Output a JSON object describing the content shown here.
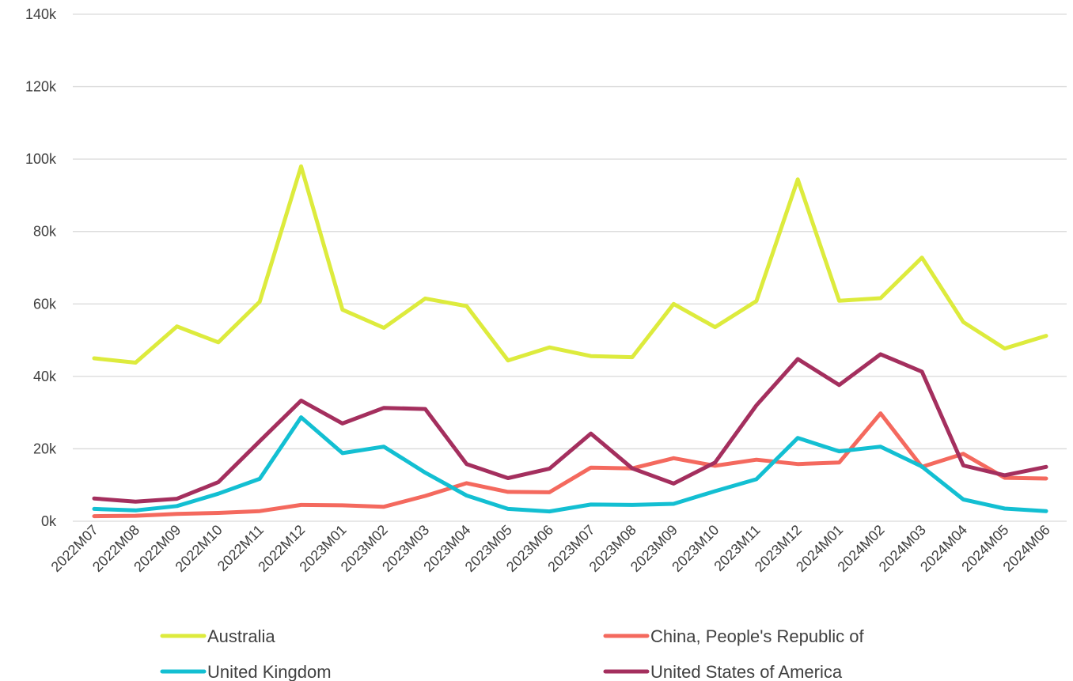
{
  "chart_data": {
    "type": "line",
    "title": "",
    "xlabel": "",
    "ylabel": "",
    "ylim": [
      0,
      140000
    ],
    "y_ticks": [
      {
        "value": 0,
        "label": "0k"
      },
      {
        "value": 20000,
        "label": "20k"
      },
      {
        "value": 40000,
        "label": "40k"
      },
      {
        "value": 60000,
        "label": "60k"
      },
      {
        "value": 80000,
        "label": "80k"
      },
      {
        "value": 100000,
        "label": "100k"
      },
      {
        "value": 120000,
        "label": "120k"
      },
      {
        "value": 140000,
        "label": "140k"
      }
    ],
    "grid": true,
    "legend_position": "bottom",
    "categories": [
      "2022M07",
      "2022M08",
      "2022M09",
      "2022M10",
      "2022M11",
      "2022M12",
      "2023M01",
      "2023M02",
      "2023M03",
      "2023M04",
      "2023M05",
      "2023M06",
      "2023M07",
      "2023M08",
      "2023M09",
      "2023M10",
      "2023M11",
      "2023M12",
      "2024M01",
      "2024M02",
      "2024M03",
      "2024M04",
      "2024M05",
      "2024M06"
    ],
    "series": [
      {
        "name": "Australia",
        "color": "#DDEB3D",
        "values": [
          45000,
          43800,
          53800,
          49400,
          60600,
          98000,
          58400,
          53400,
          61500,
          59400,
          44400,
          48000,
          45600,
          45300,
          60000,
          53600,
          60800,
          94400,
          60900,
          61600,
          72800,
          55000,
          47700,
          51200
        ]
      },
      {
        "name": "China, People's Republic of",
        "color": "#F4695E",
        "values": [
          1400,
          1500,
          2000,
          2300,
          2800,
          4500,
          4400,
          4000,
          7000,
          10500,
          8100,
          8000,
          14800,
          14600,
          17400,
          15300,
          17000,
          15800,
          16200,
          29800,
          15000,
          18600,
          12000,
          11800
        ]
      },
      {
        "name": "United Kingdom",
        "color": "#13BFD2",
        "values": [
          3400,
          3000,
          4200,
          7600,
          11700,
          28700,
          18800,
          20600,
          13400,
          7100,
          3400,
          2700,
          4600,
          4500,
          4800,
          8300,
          11600,
          23000,
          19300,
          20600,
          15100,
          6000,
          3500,
          2800
        ]
      },
      {
        "name": "United States of America",
        "color": "#A42F5E",
        "values": [
          6300,
          5400,
          6200,
          10800,
          22100,
          33300,
          27000,
          31300,
          31000,
          15800,
          11900,
          14500,
          24200,
          14600,
          10400,
          16200,
          32000,
          44800,
          37600,
          46100,
          41300,
          15400,
          12700,
          15000
        ]
      }
    ]
  }
}
